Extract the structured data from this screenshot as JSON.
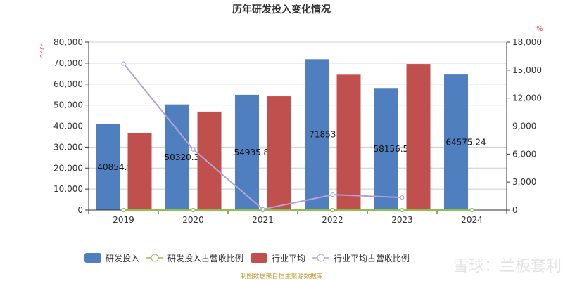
{
  "chart_data": {
    "type": "bar",
    "title": "历年研发投入变化情况",
    "categories": [
      "2019",
      "2020",
      "2021",
      "2022",
      "2023",
      "2024"
    ],
    "left_axis": {
      "unit_label": "万元",
      "ylim": [
        0,
        80000
      ],
      "ticks": [
        "0",
        "10,000",
        "20,000",
        "30,000",
        "40,000",
        "50,000",
        "60,000",
        "70,000",
        "80,000"
      ]
    },
    "right_axis": {
      "unit_label": "%",
      "ylim": [
        0,
        18000
      ],
      "ticks": [
        "0",
        "3,000",
        "6,000",
        "9,000",
        "12,000",
        "15,000",
        "18,000"
      ]
    },
    "series": [
      {
        "name": "研发投入",
        "kind": "bar",
        "axis": "left",
        "color": "#4f7fbf",
        "values": [
          40854.91,
          50320.375,
          54935.883,
          71853.6,
          58156.562,
          64575.24
        ],
        "labels": [
          "40854.91",
          "50320.375",
          "54935.883",
          "71853.6",
          "58156.562",
          "64575.24"
        ]
      },
      {
        "name": "研发投入占营收比例",
        "kind": "line",
        "axis": "right",
        "color": "#8fbf4f",
        "values": [
          0,
          0,
          0,
          0,
          0,
          0
        ]
      },
      {
        "name": "行业平均",
        "kind": "bar",
        "axis": "left",
        "color": "#c0504d",
        "values": [
          36800,
          46900,
          54200,
          64500,
          69600,
          null
        ]
      },
      {
        "name": "行业平均占营收比例",
        "kind": "line",
        "axis": "right",
        "color": "#b3a3d3",
        "values": [
          15700,
          6500,
          80,
          1650,
          1350,
          null
        ]
      }
    ],
    "grid": true,
    "legend_position": "bottom"
  },
  "footer": {
    "source": "制图数据来自恒生聚源数据库",
    "watermark": "雪球：兰板套利"
  }
}
